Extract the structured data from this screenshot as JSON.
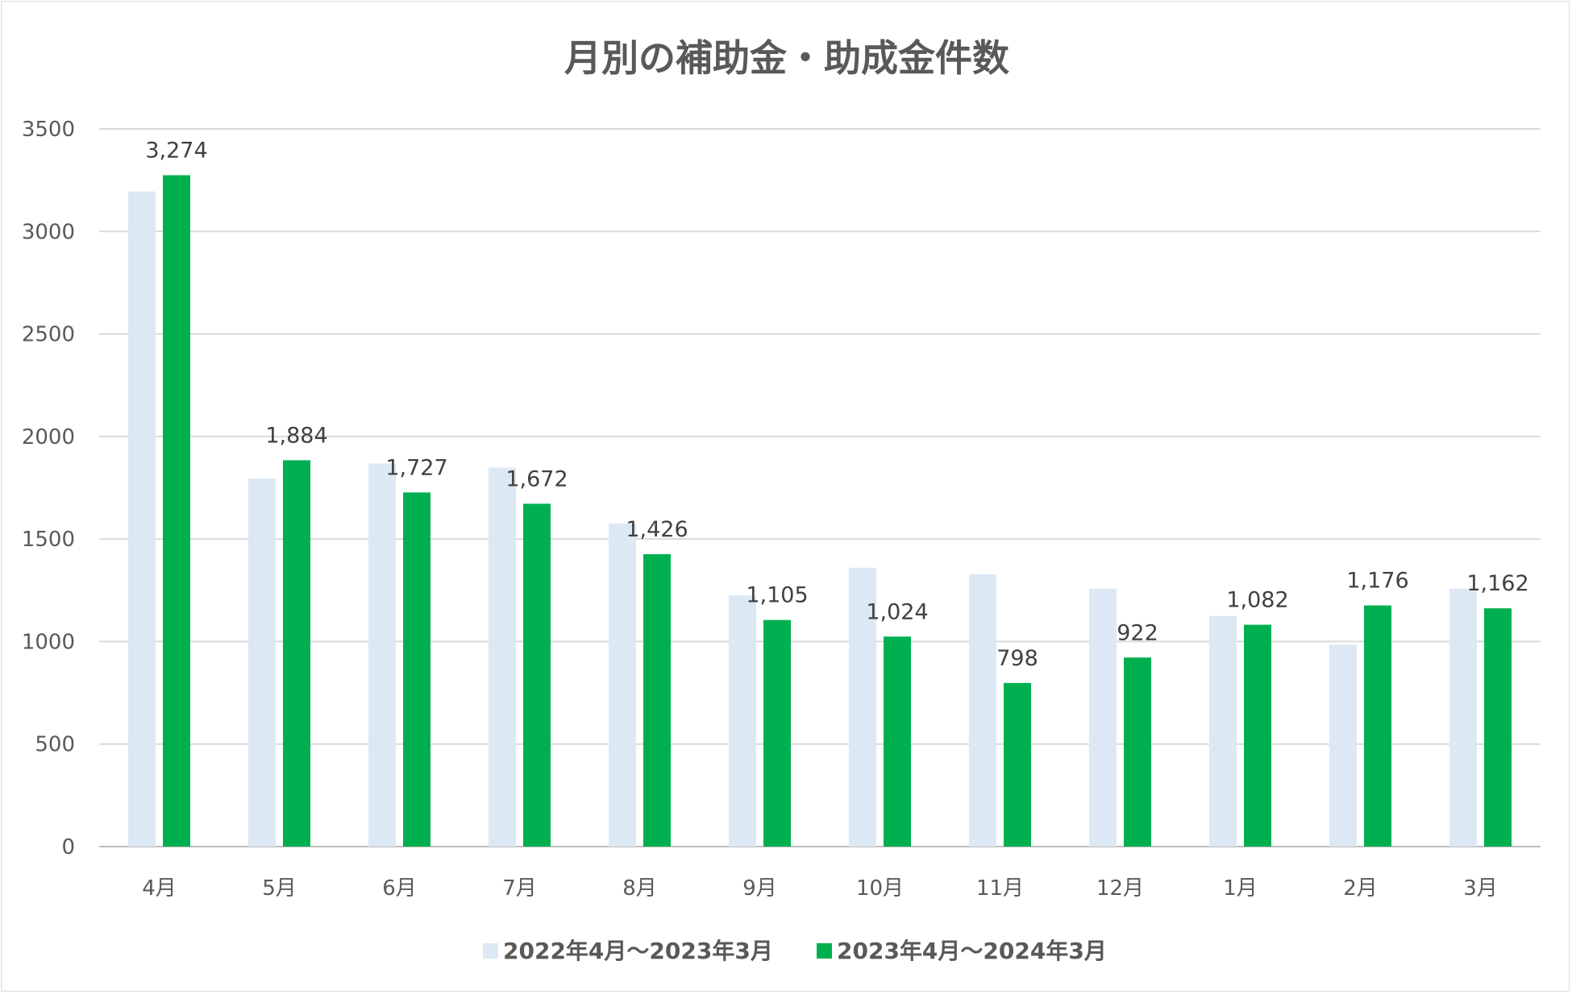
{
  "chart_data": {
    "type": "bar",
    "title": "月別の補助金・助成金件数",
    "categories": [
      "4月",
      "5月",
      "6月",
      "7月",
      "8月",
      "9月",
      "10月",
      "11月",
      "12月",
      "1月",
      "2月",
      "3月"
    ],
    "series": [
      {
        "name": "2022年4月～2023年3月",
        "color": "#dde8f5",
        "values": [
          3195,
          1795,
          1868,
          1848,
          1575,
          1225,
          1360,
          1328,
          1258,
          1125,
          985,
          1258
        ],
        "data_labels": false
      },
      {
        "name": "2023年4月～2024年3月",
        "color": "#00b050",
        "values": [
          3274,
          1884,
          1727,
          1672,
          1426,
          1105,
          1024,
          798,
          922,
          1082,
          1176,
          1162
        ],
        "data_labels": true,
        "labels": [
          "3,274",
          "1,884",
          "1,727",
          "1,672",
          "1,426",
          "1,105",
          "1,024",
          "798",
          "922",
          "1,082",
          "1,176",
          "1,162"
        ]
      }
    ],
    "ylim": [
      0,
      3500
    ],
    "yticks": [
      0,
      500,
      1000,
      1500,
      2000,
      2500,
      3000,
      3500
    ],
    "grid": true,
    "legend": "bottom"
  }
}
